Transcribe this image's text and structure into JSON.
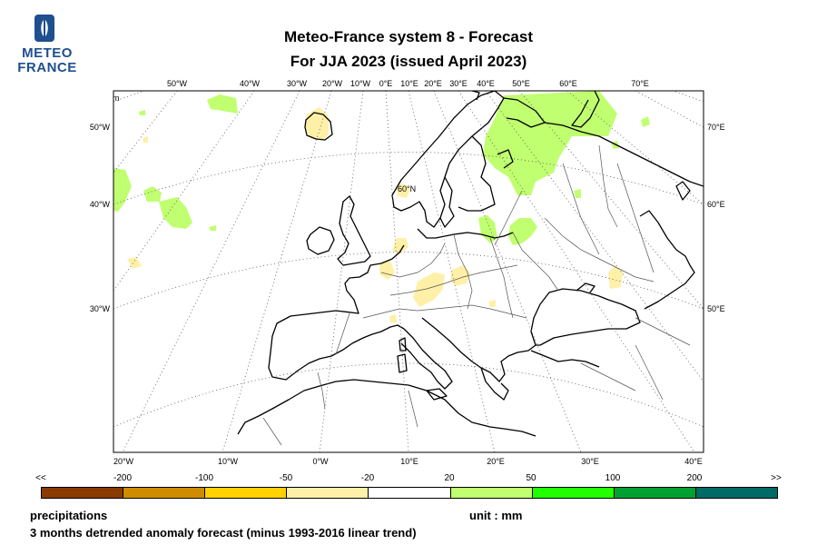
{
  "logo": {
    "line1": "METEO",
    "line2": "FRANCE",
    "colors": {
      "blue": "#1e4f8f"
    }
  },
  "title": {
    "line1": "Meteo-France system 8  -  Forecast",
    "line2": "For JJA 2023      (issued April 2023)"
  },
  "map": {
    "top_lon_labels": [
      "50°W",
      "40°W",
      "30°W",
      "20°W",
      "10°W",
      "0°E",
      "10°E",
      "20°E",
      "30°E",
      "40°E",
      "50°E",
      "60°E",
      "70°E"
    ],
    "bottom_lon_labels": [
      "20°W",
      "10°W",
      "0°W",
      "10°E",
      "20°E",
      "30°E",
      "40°E"
    ],
    "left_lat_labels": [
      "50°W",
      "40°W",
      "30°W"
    ],
    "right_lat_labels": [
      "70°E",
      "60°E",
      "50°E"
    ],
    "inner_label": "60°N",
    "colors": {
      "wet": "#c0ff70",
      "dry": "#fff0a8",
      "coast": "#000000",
      "border": "#555555",
      "grid": "#555555"
    }
  },
  "colorbar": {
    "labels": [
      "<<",
      "-200",
      "-100",
      "-50",
      "-20",
      "20",
      "50",
      "100",
      "200",
      ">>"
    ],
    "colors": [
      "#8b3a00",
      "#d08c00",
      "#ffd200",
      "#fff0a8",
      "#ffffff",
      "#c0ff70",
      "#22ff00",
      "#00a030",
      "#006a66"
    ]
  },
  "footer": {
    "variable": "precipitations",
    "unit": "unit : mm",
    "description": "3 months detrended anomaly forecast (minus 1993-2016 linear trend)"
  }
}
